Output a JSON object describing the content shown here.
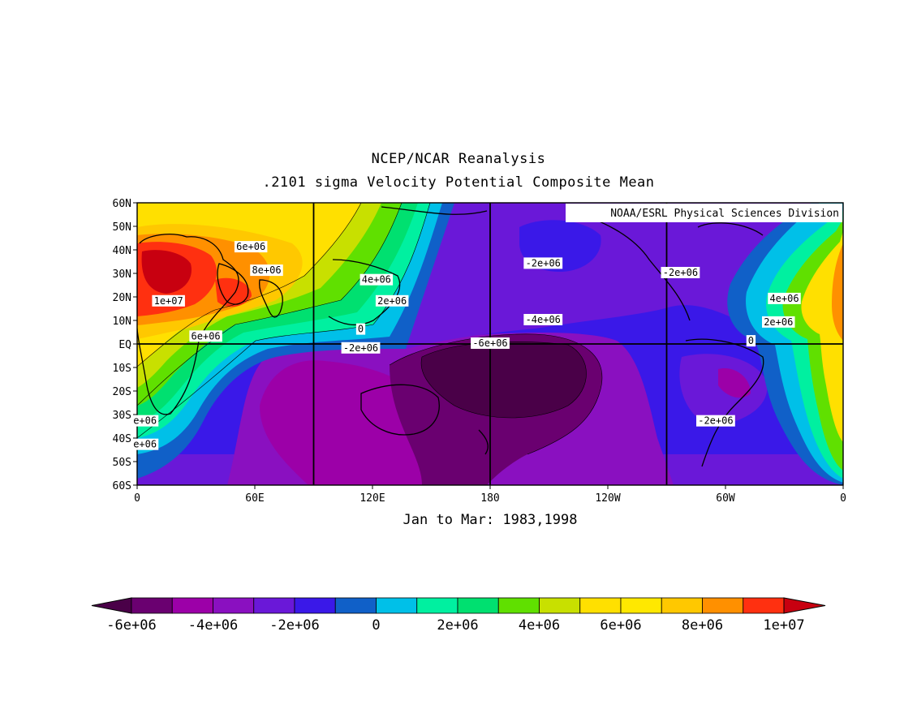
{
  "title": "NCEP/NCAR Reanalysis",
  "subtitle": ".2101 sigma Velocity Potential  Composite Mean",
  "caption": "Jan to Mar: 1983,1998",
  "credit": "NOAA/ESRL Physical Sciences Division",
  "colors": [
    "#4a0048",
    "#6a0070",
    "#9c00a8",
    "#8a10c0",
    "#6a18d8",
    "#3a18e8",
    "#1060c8",
    "#00c0e8",
    "#00f0a0",
    "#00e070",
    "#60e000",
    "#c8e000",
    "#ffe000",
    "#ffe800",
    "#ffc800",
    "#ff9000",
    "#ff3010",
    "#c80010"
  ],
  "chart_data": {
    "type": "contour-map",
    "variable": "Velocity Potential",
    "level": ".2101 sigma",
    "x_ticks": [
      "0",
      "60E",
      "120E",
      "180",
      "120W",
      "60W",
      "0"
    ],
    "y_ticks": [
      "60N",
      "50N",
      "40N",
      "30N",
      "20N",
      "10N",
      "EQ",
      "10S",
      "20S",
      "30S",
      "40S",
      "50S",
      "60S"
    ],
    "colorbar_labels": [
      "-6e+06",
      "-4e+06",
      "-2e+06",
      "0",
      "2e+06",
      "4e+06",
      "6e+06",
      "8e+06",
      "1e+07"
    ],
    "contour_labels": [
      {
        "text": "6e+06",
        "lon": 58,
        "lat": 41
      },
      {
        "text": "8e+06",
        "lon": 66,
        "lat": 31
      },
      {
        "text": "1e+07",
        "lon": 16,
        "lat": 18
      },
      {
        "text": "4e+06",
        "lon": 122,
        "lat": 27
      },
      {
        "text": "2e+06",
        "lon": 130,
        "lat": 18
      },
      {
        "text": "6e+06",
        "lon": 35,
        "lat": 3
      },
      {
        "text": "0",
        "lon": 114,
        "lat": 6
      },
      {
        "text": "-2e+06",
        "lon": 114,
        "lat": -2
      },
      {
        "text": "-6e+06",
        "lon": 180,
        "lat": 0
      },
      {
        "text": "-4e+06",
        "lon": 207,
        "lat": 10
      },
      {
        "text": "-2e+06",
        "lon": 207,
        "lat": 34
      },
      {
        "text": "-2e+06",
        "lon": 277,
        "lat": 30
      },
      {
        "text": "4e+06",
        "lon": 330,
        "lat": 19
      },
      {
        "text": "2e+06",
        "lon": 327,
        "lat": 9
      },
      {
        "text": "0",
        "lon": 313,
        "lat": 1
      },
      {
        "text": "-2e+06",
        "lon": 295,
        "lat": -33
      },
      {
        "text": "e+06",
        "lon": 4,
        "lat": -33
      },
      {
        "text": "e+06",
        "lon": 4,
        "lat": -43
      }
    ]
  }
}
